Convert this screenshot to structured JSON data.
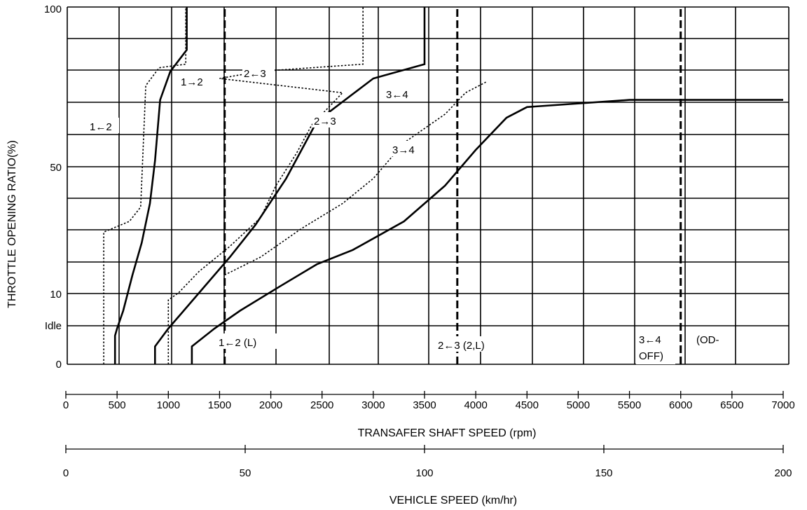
{
  "chart_data": {
    "type": "line",
    "ylabel": "THROTTLE OPENING RATIO(%)",
    "xlabel": "TRANSAFER SHAFT SPEED (rpm)",
    "x2label": "VEHICLE SPEED (km/hr)",
    "xlim": [
      0,
      7000
    ],
    "x2lim": [
      0,
      200
    ],
    "y_tick_labels": [
      "100",
      "50",
      "10",
      "Idle",
      "0"
    ],
    "x_ticks": [
      0,
      500,
      1000,
      1500,
      2000,
      2500,
      3000,
      3500,
      4000,
      4500,
      5000,
      5500,
      6000,
      6500,
      7000
    ],
    "x2_ticks": [
      0,
      50,
      100,
      150,
      200
    ],
    "grid": true,
    "series": [
      {
        "name": "1→2",
        "style": "solid",
        "points": [
          [
            480,
            0
          ],
          [
            480,
            8
          ],
          [
            500,
            10
          ],
          [
            560,
            15
          ],
          [
            650,
            25
          ],
          [
            740,
            34
          ],
          [
            820,
            45
          ],
          [
            870,
            57
          ],
          [
            920,
            74
          ],
          [
            1020,
            82
          ],
          [
            1180,
            88
          ],
          [
            1180,
            100
          ]
        ]
      },
      {
        "name": "1←2",
        "style": "dotted",
        "points": [
          [
            370,
            0
          ],
          [
            370,
            37
          ],
          [
            620,
            40
          ],
          [
            730,
            44
          ],
          [
            780,
            78
          ],
          [
            910,
            83
          ],
          [
            1170,
            84
          ],
          [
            1170,
            100
          ]
        ]
      },
      {
        "name": "2→3",
        "style": "solid",
        "points": [
          [
            870,
            0
          ],
          [
            870,
            5
          ],
          [
            1000,
            10
          ],
          [
            1300,
            20
          ],
          [
            1600,
            30
          ],
          [
            1850,
            39
          ],
          [
            2150,
            52
          ],
          [
            2450,
            68
          ],
          [
            3000,
            80
          ],
          [
            3500,
            84
          ],
          [
            3500,
            100
          ]
        ]
      },
      {
        "name": "2←3",
        "style": "dotted",
        "points": [
          [
            1000,
            0
          ],
          [
            1000,
            18
          ],
          [
            1100,
            20
          ],
          [
            1300,
            26
          ],
          [
            1600,
            33
          ],
          [
            1900,
            41
          ],
          [
            2050,
            50
          ],
          [
            2250,
            59
          ],
          [
            2400,
            67
          ],
          [
            2700,
            76
          ],
          [
            1500,
            80
          ],
          [
            1900,
            82
          ],
          [
            2900,
            84
          ],
          [
            2900,
            100
          ]
        ]
      },
      {
        "name": "3→4",
        "style": "solid",
        "points": [
          [
            1230,
            0
          ],
          [
            1230,
            5
          ],
          [
            1450,
            10
          ],
          [
            1700,
            15
          ],
          [
            2100,
            22
          ],
          [
            2450,
            28
          ],
          [
            2800,
            32
          ],
          [
            3300,
            40
          ],
          [
            3700,
            50
          ],
          [
            4000,
            60
          ],
          [
            4300,
            69
          ],
          [
            4500,
            72
          ],
          [
            5500,
            74
          ],
          [
            6500,
            74
          ],
          [
            7000,
            74
          ]
        ]
      },
      {
        "name": "3←4",
        "style": "dotted",
        "points": [
          [
            1550,
            25
          ],
          [
            1900,
            30
          ],
          [
            2300,
            38
          ],
          [
            2700,
            45
          ],
          [
            3000,
            52
          ],
          [
            3300,
            62
          ],
          [
            3700,
            70
          ],
          [
            3900,
            76
          ],
          [
            4100,
            79
          ]
        ]
      },
      {
        "name": "1←2 (L)",
        "style": "dashed",
        "points": [
          [
            1550,
            0
          ],
          [
            1550,
            100
          ]
        ]
      },
      {
        "name": "2←3 (2,L)",
        "style": "dashed",
        "points": [
          [
            3820,
            0
          ],
          [
            3820,
            100
          ]
        ]
      },
      {
        "name": "3←4 (OD-OFF)",
        "style": "dashed",
        "points": [
          [
            6000,
            0
          ],
          [
            6000,
            100
          ]
        ]
      }
    ]
  },
  "labels": {
    "l12": "1→2",
    "l12d": "1←2",
    "l23": "2→3",
    "l23d": "2←3",
    "l34": "3→4",
    "l34d": "3←4",
    "l12L": "1←2 (L)",
    "l23L": "2←3 (2,L)",
    "l34a": "3←4",
    "l34b": "OFF)",
    "lod": "(OD-"
  }
}
